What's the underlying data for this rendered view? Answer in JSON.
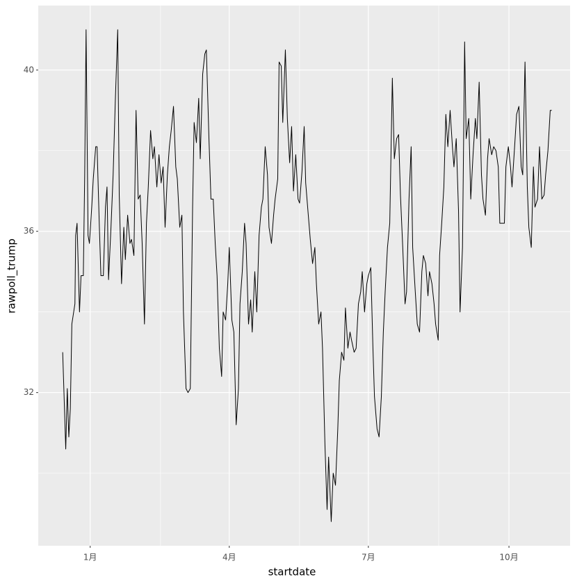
{
  "chart_data": {
    "type": "line",
    "x_label": "startdate",
    "y_label": "rawpoll_trump",
    "color": "#000000",
    "grid": true,
    "xlim": [
      -34,
      314
    ],
    "ylim": [
      28.2,
      41.6
    ],
    "xticks": [
      {
        "value": 0,
        "label": "1月"
      },
      {
        "value": 91,
        "label": "4月"
      },
      {
        "value": 182,
        "label": "7月"
      },
      {
        "value": 274,
        "label": "10月"
      }
    ],
    "xminor": [
      46,
      137,
      228
    ],
    "yticks": [
      32,
      36,
      40
    ],
    "yminor": [
      30,
      34,
      38
    ],
    "x": [
      -18,
      -16,
      -15,
      -14,
      -13,
      -12,
      -10,
      -9.5,
      -8.6,
      -7,
      -6,
      -4.5,
      -3.6,
      -2.7,
      -1.4,
      -0.5,
      1,
      2,
      3.6,
      4.5,
      6,
      7,
      8.6,
      10,
      11,
      12,
      13.6,
      15,
      16.4,
      18,
      19,
      20.5,
      22,
      23,
      24.5,
      26,
      27,
      28.6,
      30,
      31.4,
      32.7,
      34,
      35.5,
      36.8,
      38,
      39.5,
      41,
      42,
      43.6,
      45,
      46.4,
      47.7,
      49,
      50.5,
      51.8,
      53,
      54.5,
      56,
      57,
      58.6,
      60,
      61,
      62.7,
      64,
      65.5,
      67,
      68,
      69.5,
      71,
      72,
      73.6,
      75,
      76,
      77.7,
      79,
      80.5,
      81.8,
      83,
      84.5,
      86,
      87,
      88.6,
      90,
      91,
      92.7,
      94,
      95.5,
      97,
      98,
      99.5,
      101,
      102,
      103.6,
      105,
      106,
      107.7,
      109,
      110.5,
      112,
      113,
      114.5,
      116,
      117,
      118.6,
      120,
      121,
      122.7,
      123.6,
      125,
      126,
      127.7,
      129,
      130.5,
      131.8,
      133,
      134.5,
      136,
      137,
      138.6,
      140,
      141,
      142.7,
      144,
      145.5,
      147,
      148,
      149.5,
      151,
      152,
      153.6,
      155,
      156,
      157.7,
      159,
      160.5,
      162,
      163,
      164.5,
      166,
      167,
      168.6,
      170,
      171,
      172.7,
      174,
      175.5,
      177,
      178,
      179.5,
      181,
      182,
      183.6,
      185,
      186,
      187.7,
      189,
      190.5,
      191.8,
      193,
      194.5,
      196,
      197.7,
      199,
      200.5,
      201.8,
      203,
      204.5,
      206,
      207,
      208.6,
      210,
      211,
      212.7,
      214,
      215.5,
      217,
      218,
      219.5,
      221,
      222,
      223.6,
      225,
      226,
      227.7,
      228.6,
      230,
      231.4,
      232.7,
      234,
      235.5,
      237,
      238,
      239.5,
      241,
      242,
      243.6,
      245,
      246,
      247.7,
      249,
      250.5,
      252,
      253,
      254.5,
      256,
      257,
      258.6,
      260,
      261,
      262.7,
      264,
      265.5,
      267,
      268,
      269.5,
      271,
      272,
      273.6,
      275,
      276,
      277.7,
      279,
      280.5,
      282,
      283,
      284.5,
      286,
      287,
      288.6,
      290,
      291,
      292.7,
      294,
      295.5,
      297,
      298,
      299.5,
      301,
      302
    ],
    "values": [
      33.0,
      30.6,
      32.1,
      30.9,
      31.6,
      33.7,
      34.2,
      35.9,
      36.2,
      34.0,
      34.9,
      34.9,
      37.4,
      41.0,
      35.9,
      35.7,
      36.6,
      37.3,
      38.1,
      38.1,
      36.1,
      34.9,
      34.9,
      36.6,
      37.1,
      34.8,
      36.1,
      37.4,
      39.2,
      41.0,
      36.9,
      34.7,
      36.1,
      35.3,
      36.4,
      35.7,
      35.8,
      35.4,
      39.0,
      36.8,
      36.9,
      35.7,
      33.7,
      36.2,
      37.1,
      38.5,
      37.8,
      38.1,
      37.1,
      37.9,
      37.2,
      37.6,
      36.1,
      37.4,
      38.1,
      38.5,
      39.1,
      37.6,
      37.3,
      36.1,
      36.4,
      34.0,
      32.1,
      32.0,
      32.1,
      36.6,
      38.7,
      38.2,
      39.3,
      37.8,
      39.9,
      40.4,
      40.5,
      38.3,
      36.8,
      36.8,
      35.7,
      34.9,
      33.1,
      32.4,
      34.0,
      33.8,
      34.7,
      35.6,
      33.8,
      33.5,
      31.2,
      32.1,
      34.2,
      35.0,
      36.2,
      35.7,
      33.7,
      34.3,
      33.5,
      35.0,
      34.0,
      35.9,
      36.6,
      36.8,
      38.1,
      37.4,
      36.1,
      35.7,
      36.4,
      36.8,
      37.3,
      40.2,
      40.1,
      38.7,
      40.5,
      38.8,
      37.7,
      38.6,
      37.0,
      37.9,
      36.8,
      36.7,
      37.5,
      38.6,
      37.2,
      36.4,
      35.8,
      35.2,
      35.6,
      34.7,
      33.7,
      34.0,
      33.1,
      30.7,
      29.1,
      30.4,
      28.8,
      30.0,
      29.7,
      31.1,
      32.3,
      33.0,
      32.8,
      34.1,
      33.1,
      33.5,
      33.3,
      33.0,
      33.1,
      34.2,
      34.5,
      35.0,
      34.0,
      34.7,
      34.9,
      35.1,
      33.1,
      31.9,
      31.1,
      30.9,
      31.9,
      33.5,
      34.5,
      35.6,
      36.2,
      39.8,
      37.8,
      38.3,
      38.4,
      36.9,
      35.6,
      34.2,
      34.5,
      36.8,
      38.1,
      35.6,
      34.5,
      33.7,
      33.5,
      35.0,
      35.4,
      35.2,
      34.4,
      35.0,
      34.7,
      34.2,
      33.7,
      33.3,
      35.4,
      36.2,
      37.1,
      38.9,
      38.1,
      39.0,
      38.1,
      37.6,
      38.3,
      36.5,
      34.0,
      35.6,
      40.7,
      38.3,
      38.8,
      36.8,
      37.9,
      38.8,
      38.3,
      39.7,
      37.4,
      36.8,
      36.4,
      37.8,
      38.3,
      37.9,
      38.1,
      38.0,
      37.6,
      36.2,
      36.2,
      36.2,
      37.6,
      38.1,
      37.6,
      37.1,
      38.1,
      38.9,
      39.1,
      37.6,
      37.4,
      40.2,
      37.1,
      36.1,
      35.6,
      37.6,
      36.6,
      36.8,
      38.1,
      36.8,
      36.9,
      37.4,
      38.0,
      39.0,
      39.0
    ]
  }
}
